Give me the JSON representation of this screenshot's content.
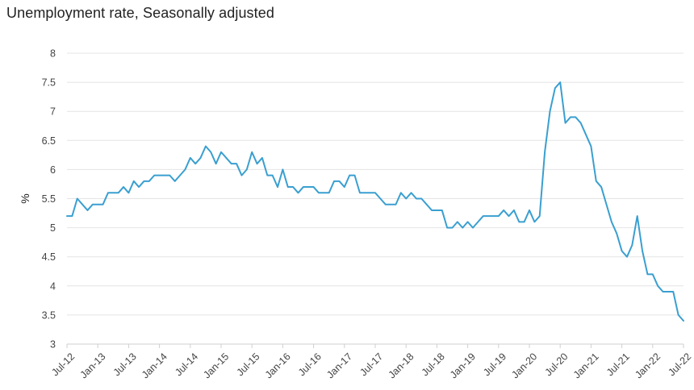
{
  "chart_data": {
    "type": "line",
    "title": "Unemployment rate, Seasonally adjusted",
    "xlabel": "",
    "ylabel": "%",
    "ylim": [
      3,
      8
    ],
    "yticks": [
      "3",
      "3.5",
      "4",
      "4.5",
      "5",
      "5.5",
      "6",
      "6.5",
      "7",
      "7.5",
      "8"
    ],
    "xticks": [
      "Jul-12",
      "Jan-13",
      "Jul-13",
      "Jan-14",
      "Jul-14",
      "Jan-15",
      "Jul-15",
      "Jan-16",
      "Jul-16",
      "Jan-17",
      "Jul-17",
      "Jan-18",
      "Jul-18",
      "Jan-19",
      "Jul-19",
      "Jan-20",
      "Jul-20",
      "Jan-21",
      "Jul-21",
      "Jan-22",
      "Jul-22"
    ],
    "x_start": "Jul-12",
    "x_end": "Jul-22",
    "grid": true,
    "line_color": "#3a9fd0",
    "series": [
      {
        "values": [
          5.2,
          5.2,
          5.5,
          5.4,
          5.3,
          5.4,
          5.4,
          5.4,
          5.6,
          5.6,
          5.6,
          5.7,
          5.6,
          5.8,
          5.7,
          5.8,
          5.8,
          5.9,
          5.9,
          5.9,
          5.9,
          5.8,
          5.9,
          6.0,
          6.2,
          6.1,
          6.2,
          6.4,
          6.3,
          6.1,
          6.3,
          6.2,
          6.1,
          6.1,
          5.9,
          6.0,
          6.3,
          6.1,
          6.2,
          5.9,
          5.9,
          5.7,
          6.0,
          5.7,
          5.7,
          5.6,
          5.7,
          5.7,
          5.7,
          5.6,
          5.6,
          5.6,
          5.8,
          5.8,
          5.7,
          5.9,
          5.9,
          5.6,
          5.6,
          5.6,
          5.6,
          5.5,
          5.4,
          5.4,
          5.4,
          5.6,
          5.5,
          5.6,
          5.5,
          5.5,
          5.4,
          5.3,
          5.3,
          5.3,
          5.0,
          5.0,
          5.1,
          5.0,
          5.1,
          5.0,
          5.1,
          5.2,
          5.2,
          5.2,
          5.2,
          5.3,
          5.2,
          5.3,
          5.1,
          5.1,
          5.3,
          5.1,
          5.2,
          6.3,
          7.0,
          7.4,
          7.5,
          6.8,
          6.9,
          6.9,
          6.8,
          6.6,
          6.4,
          5.8,
          5.7,
          5.4,
          5.1,
          4.9,
          4.6,
          4.5,
          4.7,
          5.2,
          4.6,
          4.2,
          4.2,
          4.0,
          3.9,
          3.9,
          3.9,
          3.5,
          3.4
        ]
      }
    ]
  }
}
